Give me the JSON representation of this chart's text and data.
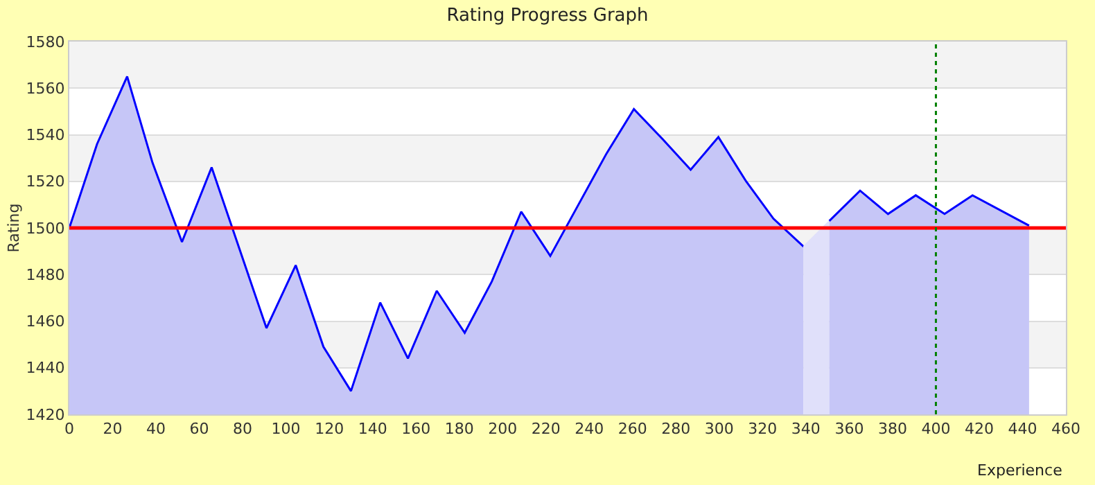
{
  "chart_data": {
    "type": "area",
    "title": "Rating Progress Graph",
    "xlabel": "Experience",
    "ylabel": "Rating",
    "xlim": [
      0,
      460
    ],
    "xticks": [
      0,
      20,
      40,
      60,
      80,
      100,
      120,
      140,
      160,
      180,
      200,
      220,
      240,
      260,
      280,
      300,
      320,
      340,
      360,
      380,
      400,
      420,
      440,
      460
    ],
    "ylim": [
      1420,
      1580
    ],
    "yticks": [
      1420,
      1440,
      1460,
      1480,
      1500,
      1520,
      1540,
      1560,
      1580
    ],
    "grid": "y",
    "series": [
      {
        "color": "#0000ff",
        "x": [
          0,
          12.8,
          26.7,
          38.4,
          52,
          65.7,
          91,
          104.5,
          117.3,
          130,
          143.5,
          156.3,
          169.6,
          182.5,
          195,
          208.6,
          222,
          235,
          248,
          260.6,
          274,
          286.8,
          299.6,
          312.4,
          325,
          338.9
        ],
        "values": [
          1500,
          1536,
          1565,
          1528,
          1494,
          1526,
          1457,
          1484,
          1449,
          1430,
          1468,
          1444,
          1473,
          1455,
          1477,
          1507,
          1488,
          1510,
          1532,
          1551,
          1538,
          1525,
          1539,
          1520,
          1504,
          1492
        ]
      },
      {
        "color": "#e0e0fa",
        "x": [
          338.9,
          350.8
        ],
        "values": [
          1492,
          1503
        ]
      },
      {
        "color": "#0000ff",
        "x": [
          350.8,
          365,
          377.9,
          390.7,
          404,
          416.9,
          443
        ],
        "values": [
          1503,
          1516,
          1506,
          1514,
          1506,
          1514,
          1501
        ]
      }
    ],
    "ref_lines": [
      {
        "axis": "y",
        "value": 1500,
        "color": "#ff0000",
        "line_style": "solid"
      },
      {
        "axis": "x",
        "value": 400,
        "color": "#008000",
        "line_style": "dotted"
      }
    ]
  }
}
